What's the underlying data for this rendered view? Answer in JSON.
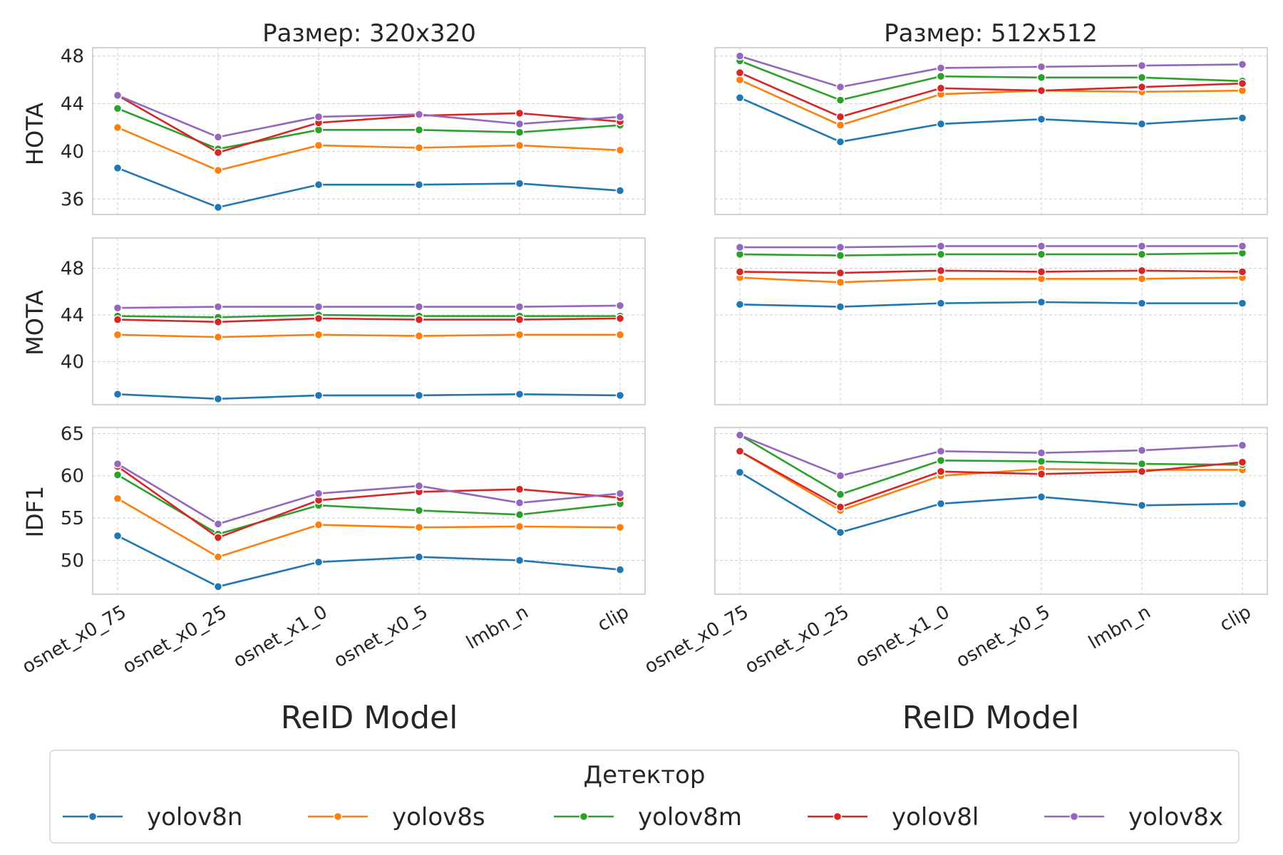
{
  "chart_data": {
    "type": "line",
    "panel_titles": [
      "Размер: 320x320",
      "Размер: 512x512"
    ],
    "xlabel": "ReID Model",
    "categories": [
      "osnet_x0_75",
      "osnet_x0_25",
      "osnet_x1_0",
      "osnet_x0_5",
      "lmbn_n",
      "clip"
    ],
    "metrics": [
      "HOTA",
      "MOTA",
      "IDF1"
    ],
    "legend": {
      "title": "Детектор",
      "placement": "bottom",
      "entries": [
        "yolov8n",
        "yolov8s",
        "yolov8m",
        "yolov8l",
        "yolov8x"
      ]
    },
    "colors": {
      "yolov8n": "#1f77b4",
      "yolov8s": "#ff7f0e",
      "yolov8m": "#2ca02c",
      "yolov8l": "#d62728",
      "yolov8x": "#9467bd"
    },
    "grid": true,
    "panels": [
      {
        "metric": "HOTA",
        "size": "320x320",
        "ylim": [
          34.7,
          48.7
        ],
        "yticks": [
          36,
          40,
          44,
          48
        ],
        "series": [
          {
            "name": "yolov8n",
            "values": [
              38.6,
              35.3,
              37.2,
              37.2,
              37.3,
              36.7
            ]
          },
          {
            "name": "yolov8s",
            "values": [
              42.0,
              38.4,
              40.5,
              40.3,
              40.5,
              40.1
            ]
          },
          {
            "name": "yolov8m",
            "values": [
              43.6,
              40.2,
              41.8,
              41.8,
              41.6,
              42.2
            ]
          },
          {
            "name": "yolov8l",
            "values": [
              44.7,
              39.9,
              42.4,
              43.0,
              43.2,
              42.5
            ]
          },
          {
            "name": "yolov8x",
            "values": [
              44.7,
              41.2,
              42.9,
              43.1,
              42.3,
              42.9
            ]
          }
        ]
      },
      {
        "metric": "HOTA",
        "size": "512x512",
        "ylim": [
          34.7,
          48.7
        ],
        "yticks": [
          36,
          40,
          44,
          48
        ],
        "series": [
          {
            "name": "yolov8n",
            "values": [
              44.5,
              40.8,
              42.3,
              42.7,
              42.3,
              42.8
            ]
          },
          {
            "name": "yolov8s",
            "values": [
              46.0,
              42.2,
              44.8,
              45.1,
              45.0,
              45.1
            ]
          },
          {
            "name": "yolov8m",
            "values": [
              47.6,
              44.3,
              46.3,
              46.2,
              46.2,
              45.9
            ]
          },
          {
            "name": "yolov8l",
            "values": [
              46.6,
              42.9,
              45.3,
              45.1,
              45.4,
              45.7
            ]
          },
          {
            "name": "yolov8x",
            "values": [
              48.0,
              45.4,
              47.0,
              47.1,
              47.2,
              47.3
            ]
          }
        ]
      },
      {
        "metric": "MOTA",
        "size": "320x320",
        "ylim": [
          36.3,
          50.6
        ],
        "yticks": [
          40,
          44,
          48
        ],
        "series": [
          {
            "name": "yolov8n",
            "values": [
              37.2,
              36.8,
              37.1,
              37.1,
              37.2,
              37.1
            ]
          },
          {
            "name": "yolov8s",
            "values": [
              42.3,
              42.1,
              42.3,
              42.2,
              42.3,
              42.3
            ]
          },
          {
            "name": "yolov8m",
            "values": [
              43.9,
              43.8,
              44.0,
              43.9,
              43.9,
              43.9
            ]
          },
          {
            "name": "yolov8l",
            "values": [
              43.6,
              43.4,
              43.7,
              43.6,
              43.6,
              43.7
            ]
          },
          {
            "name": "yolov8x",
            "values": [
              44.6,
              44.7,
              44.7,
              44.7,
              44.7,
              44.8
            ]
          }
        ]
      },
      {
        "metric": "MOTA",
        "size": "512x512",
        "ylim": [
          36.3,
          50.6
        ],
        "yticks": [
          40,
          44,
          48
        ],
        "series": [
          {
            "name": "yolov8n",
            "values": [
              44.9,
              44.7,
              45.0,
              45.1,
              45.0,
              45.0
            ]
          },
          {
            "name": "yolov8s",
            "values": [
              47.2,
              46.8,
              47.1,
              47.1,
              47.1,
              47.2
            ]
          },
          {
            "name": "yolov8m",
            "values": [
              49.2,
              49.1,
              49.2,
              49.2,
              49.2,
              49.3
            ]
          },
          {
            "name": "yolov8l",
            "values": [
              47.7,
              47.6,
              47.8,
              47.7,
              47.8,
              47.7
            ]
          },
          {
            "name": "yolov8x",
            "values": [
              49.8,
              49.8,
              49.9,
              49.9,
              49.9,
              49.9
            ]
          }
        ]
      },
      {
        "metric": "IDF1",
        "size": "320x320",
        "ylim": [
          46.0,
          65.7
        ],
        "yticks": [
          50,
          55,
          60,
          65
        ],
        "series": [
          {
            "name": "yolov8n",
            "values": [
              52.9,
              46.9,
              49.8,
              50.4,
              50.0,
              48.9
            ]
          },
          {
            "name": "yolov8s",
            "values": [
              57.3,
              50.4,
              54.2,
              53.9,
              54.0,
              53.9
            ]
          },
          {
            "name": "yolov8m",
            "values": [
              60.1,
              53.1,
              56.5,
              55.9,
              55.4,
              56.7
            ]
          },
          {
            "name": "yolov8l",
            "values": [
              61.1,
              52.7,
              57.1,
              58.1,
              58.4,
              57.4
            ]
          },
          {
            "name": "yolov8x",
            "values": [
              61.4,
              54.3,
              57.9,
              58.8,
              56.8,
              57.9
            ]
          }
        ]
      },
      {
        "metric": "IDF1",
        "size": "512x512",
        "ylim": [
          46.0,
          65.7
        ],
        "yticks": [
          50,
          55,
          60,
          65
        ],
        "series": [
          {
            "name": "yolov8n",
            "values": [
              60.4,
              53.3,
              56.7,
              57.5,
              56.5,
              56.7
            ]
          },
          {
            "name": "yolov8s",
            "values": [
              62.9,
              55.9,
              60.0,
              60.8,
              60.7,
              60.7
            ]
          },
          {
            "name": "yolov8m",
            "values": [
              64.8,
              57.8,
              61.8,
              61.7,
              61.4,
              61.3
            ]
          },
          {
            "name": "yolov8l",
            "values": [
              62.9,
              56.3,
              60.5,
              60.2,
              60.5,
              61.6
            ]
          },
          {
            "name": "yolov8x",
            "values": [
              64.8,
              60.0,
              62.9,
              62.7,
              63.0,
              63.6
            ]
          }
        ]
      }
    ]
  }
}
